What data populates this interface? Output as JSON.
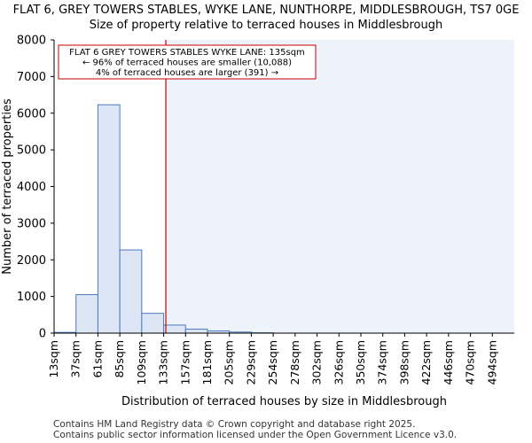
{
  "title_line1": "FLAT 6, GREY TOWERS STABLES, WYKE LANE, NUNTHORPE, MIDDLESBROUGH, TS7 0GE",
  "title_line2": "Size of property relative to terraced houses in Middlesbrough",
  "footer_line1": "Contains HM Land Registry data © Crown copyright and database right 2025.",
  "footer_line2": "Contains public sector information licensed under the Open Government Licence v3.0.",
  "colors": {
    "bar_fill": "#dce6f5",
    "bar_stroke": "#4a7bbf",
    "marker": "#cc0000",
    "shade": "#eef2fb",
    "axis": "#000000"
  },
  "chart_data": {
    "type": "bar",
    "title": "Size of property relative to terraced houses in Middlesbrough",
    "xlabel": "Distribution of terraced houses by size in Middlesbrough",
    "ylabel": "Number of terraced properties",
    "ylim": [
      0,
      8000
    ],
    "yticks": [
      0,
      1000,
      2000,
      3000,
      4000,
      5000,
      6000,
      7000,
      8000
    ],
    "categories": [
      "13sqm",
      "37sqm",
      "61sqm",
      "85sqm",
      "109sqm",
      "133sqm",
      "157sqm",
      "181sqm",
      "205sqm",
      "229sqm",
      "254sqm",
      "278sqm",
      "302sqm",
      "326sqm",
      "350sqm",
      "374sqm",
      "398sqm",
      "422sqm",
      "446sqm",
      "470sqm",
      "494sqm"
    ],
    "values": [
      20,
      1050,
      6230,
      2270,
      540,
      220,
      110,
      60,
      30,
      10,
      0,
      0,
      0,
      0,
      0,
      0,
      0,
      0,
      0,
      0,
      0
    ],
    "marker_value_index": 5.1,
    "annotation": {
      "line1": "FLAT 6 GREY TOWERS STABLES WYKE LANE: 135sqm",
      "line2": "← 96% of terraced houses are smaller (10,088)",
      "line3": "4% of terraced houses are larger (391) →"
    }
  }
}
